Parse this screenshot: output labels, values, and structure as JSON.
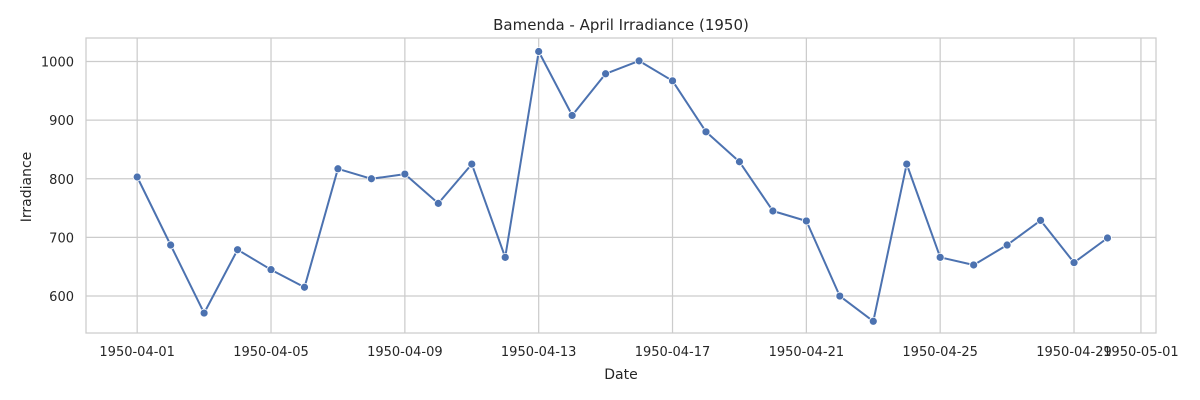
{
  "chart_data": {
    "type": "line",
    "title": "Bamenda - April Irradiance (1950)",
    "xlabel": "Date",
    "ylabel": "Irradiance",
    "x": [
      "1950-04-01",
      "1950-04-02",
      "1950-04-03",
      "1950-04-04",
      "1950-04-05",
      "1950-04-06",
      "1950-04-07",
      "1950-04-08",
      "1950-04-09",
      "1950-04-10",
      "1950-04-11",
      "1950-04-12",
      "1950-04-13",
      "1950-04-14",
      "1950-04-15",
      "1950-04-16",
      "1950-04-17",
      "1950-04-18",
      "1950-04-19",
      "1950-04-20",
      "1950-04-21",
      "1950-04-22",
      "1950-04-23",
      "1950-04-24",
      "1950-04-25",
      "1950-04-26",
      "1950-04-27",
      "1950-04-28",
      "1950-04-29",
      "1950-04-30"
    ],
    "series": [
      {
        "name": "Irradiance",
        "color": "#4c72b0",
        "values": [
          803,
          687,
          571,
          679,
          645,
          615,
          817,
          800,
          808,
          758,
          825,
          666,
          1017,
          908,
          979,
          1001,
          967,
          880,
          829,
          745,
          728,
          600,
          557,
          825,
          666,
          653,
          687,
          729,
          657,
          699
        ]
      }
    ],
    "xticks": [
      "1950-04-01",
      "1950-04-05",
      "1950-04-09",
      "1950-04-13",
      "1950-04-17",
      "1950-04-21",
      "1950-04-25",
      "1950-04-29",
      "1950-05-01"
    ],
    "yticks": [
      600,
      700,
      800,
      900,
      1000
    ],
    "ylim": [
      537,
      1040
    ],
    "xlim_days": [
      -1.53,
      30.45
    ],
    "grid": true,
    "colors": {
      "grid": "#cccccc",
      "line": "#4c72b0",
      "frame": "#cccccc"
    }
  }
}
